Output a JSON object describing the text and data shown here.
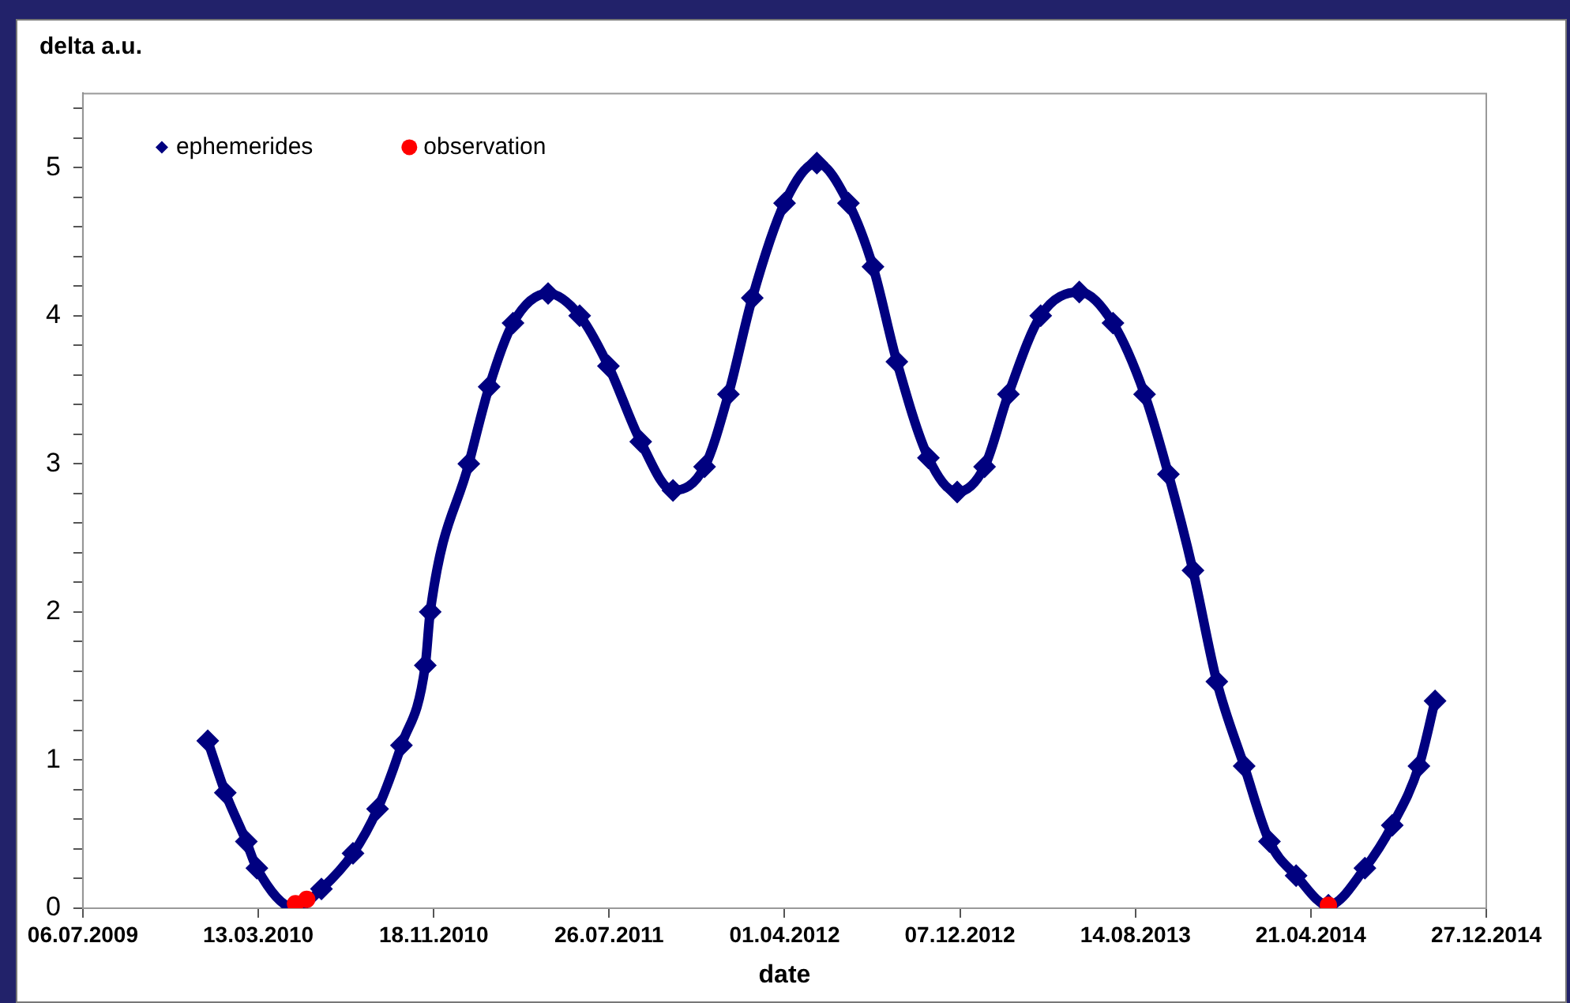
{
  "chart_data": {
    "type": "line",
    "ylabel": "delta a.u.",
    "xlabel": "date",
    "xlim": [
      "2009-07-06",
      "2014-12-27"
    ],
    "xticks": [
      {
        "value": "2009-07-06",
        "label": "06.07.2009"
      },
      {
        "value": "2010-03-13",
        "label": "13.03.2010"
      },
      {
        "value": "2010-11-18",
        "label": "18.11.2010"
      },
      {
        "value": "2011-07-26",
        "label": "26.07.2011"
      },
      {
        "value": "2012-04-01",
        "label": "01.04.2012"
      },
      {
        "value": "2012-12-07",
        "label": "07.12.2012"
      },
      {
        "value": "2013-08-14",
        "label": "14.08.2013"
      },
      {
        "value": "2014-04-21",
        "label": "21.04.2014"
      },
      {
        "value": "2014-12-27",
        "label": "27.12.2014"
      }
    ],
    "ylim": [
      0,
      5.5
    ],
    "yticks": [
      0,
      {
        "value": 0.2,
        "label": null
      },
      {
        "value": 0.4,
        "label": null
      },
      {
        "value": 0.6,
        "label": null
      },
      {
        "value": 0.8,
        "label": null
      },
      1,
      {
        "value": 1.2,
        "label": null
      },
      {
        "value": 1.4,
        "label": null
      },
      {
        "value": 1.6,
        "label": null
      },
      {
        "value": 1.8,
        "label": null
      },
      2,
      {
        "value": 2.2,
        "label": null
      },
      {
        "value": 2.4,
        "label": null
      },
      {
        "value": 2.6,
        "label": null
      },
      {
        "value": 2.8,
        "label": null
      },
      3,
      {
        "value": 3.2,
        "label": null
      },
      {
        "value": 3.4,
        "label": null
      },
      {
        "value": 3.6,
        "label": null
      },
      {
        "value": 3.8,
        "label": null
      },
      4,
      {
        "value": 4.2,
        "label": null
      },
      {
        "value": 4.4,
        "label": null
      },
      {
        "value": 4.6,
        "label": null
      },
      {
        "value": 4.8,
        "label": null
      },
      5,
      {
        "value": 5.2,
        "label": null
      },
      {
        "value": 5.4,
        "label": null
      }
    ],
    "grid": false,
    "legend": "top left",
    "series": [
      {
        "name": "ephemerides",
        "marker": "diamond",
        "color": "#000080",
        "x": [
          "2009-12-31",
          "2010-01-25",
          "2010-02-24",
          "2010-03-11",
          "2010-05-05",
          "2010-06-11",
          "2010-07-26",
          "2010-08-30",
          "2010-10-03",
          "2010-11-06",
          "2010-11-13",
          "2011-01-07",
          "2011-02-05",
          "2011-03-11",
          "2011-04-30",
          "2011-06-14",
          "2011-07-25",
          "2011-09-09",
          "2011-10-25",
          "2011-12-09",
          "2012-01-12",
          "2012-02-15",
          "2012-04-01",
          "2012-05-17",
          "2012-07-01",
          "2012-08-05",
          "2012-09-08",
          "2012-10-23",
          "2012-12-03",
          "2013-01-11",
          "2013-02-14",
          "2013-04-01",
          "2013-05-26",
          "2013-07-13",
          "2013-08-27",
          "2013-09-30",
          "2013-11-04",
          "2013-12-08",
          "2014-01-16",
          "2014-02-21",
          "2014-03-31",
          "2014-05-16",
          "2014-07-07",
          "2014-08-15",
          "2014-09-22",
          "2014-10-15"
        ],
        "values": [
          1.13,
          0.78,
          0.45,
          0.27,
          0,
          0.13,
          0.37,
          0.67,
          1.1,
          1.64,
          2.0,
          3.0,
          3.52,
          3.95,
          4.15,
          4.0,
          3.66,
          3.15,
          2.82,
          2.98,
          3.47,
          4.12,
          4.76,
          5.03,
          4.76,
          4.33,
          3.69,
          3.04,
          2.81,
          2.98,
          3.47,
          4.0,
          4.16,
          3.95,
          3.47,
          2.93,
          2.28,
          1.53,
          0.96,
          0.45,
          0.22,
          0.02,
          0.27,
          0.56,
          0.96,
          1.4
        ]
      },
      {
        "name": "observation",
        "type": "scatter",
        "marker": "circle",
        "color": "#ff0000",
        "x": [
          "2010-05-05",
          "2010-05-21",
          "2014-05-16"
        ],
        "values": [
          0.03,
          0.06,
          0.02
        ]
      }
    ]
  }
}
